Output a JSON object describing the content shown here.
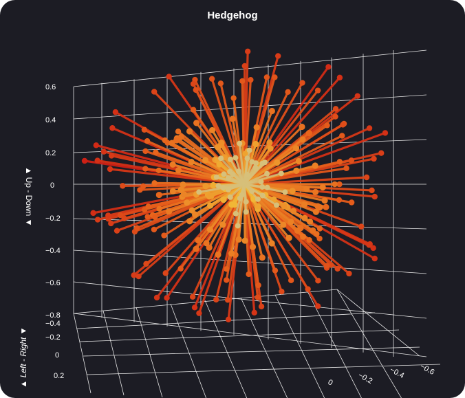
{
  "chart_data": {
    "type": "scatter",
    "title": "Hedgehog",
    "subtype": "3d-line-spikes",
    "axes": {
      "z": {
        "label": "▲ Up - Down ▼",
        "ticks": [
          "0.6",
          "0.4",
          "0.2",
          "0",
          "−0.2",
          "−0.4",
          "−0.6",
          "−0.8"
        ]
      },
      "y": {
        "label": "▲ Left - Right ▼",
        "ticks": [
          "−0.4",
          "−0.2",
          "0",
          "0.2"
        ]
      },
      "x": {
        "ticks": [
          "−0.6",
          "−0.4",
          "−0.2",
          "0"
        ]
      }
    },
    "grid": true,
    "colors": {
      "background": "#1c1c24",
      "grid": "#e6e6e6",
      "text": "#ffffff",
      "low": "#cc1a14",
      "mid": "#e8651c",
      "high": "#f2c23a",
      "pale": "#d7c07a"
    },
    "origin": [
      0,
      0,
      0
    ],
    "spike_count": 220
  }
}
